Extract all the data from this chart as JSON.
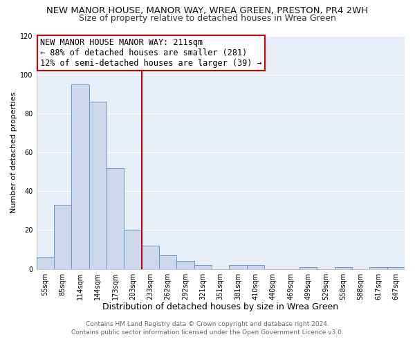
{
  "title": "NEW MANOR HOUSE, MANOR WAY, WREA GREEN, PRESTON, PR4 2WH",
  "subtitle": "Size of property relative to detached houses in Wrea Green",
  "xlabel": "Distribution of detached houses by size in Wrea Green",
  "ylabel": "Number of detached properties",
  "bar_labels": [
    "55sqm",
    "85sqm",
    "114sqm",
    "144sqm",
    "173sqm",
    "203sqm",
    "233sqm",
    "262sqm",
    "292sqm",
    "321sqm",
    "351sqm",
    "381sqm",
    "410sqm",
    "440sqm",
    "469sqm",
    "499sqm",
    "529sqm",
    "558sqm",
    "588sqm",
    "617sqm",
    "647sqm"
  ],
  "bar_values": [
    6,
    33,
    95,
    86,
    52,
    20,
    12,
    7,
    4,
    2,
    0,
    2,
    2,
    0,
    0,
    1,
    0,
    1,
    0,
    1,
    1
  ],
  "bar_color": "#ccd9ed",
  "bar_edge_color": "#6699cc",
  "vline_color": "#aa0000",
  "vline_index": 5.5,
  "ylim": [
    0,
    120
  ],
  "yticks": [
    0,
    20,
    40,
    60,
    80,
    100,
    120
  ],
  "annotation_line1": "NEW MANOR HOUSE MANOR WAY: 211sqm",
  "annotation_line2": "← 88% of detached houses are smaller (281)",
  "annotation_line3": "12% of semi-detached houses are larger (39) →",
  "annotation_box_color": "#ffffff",
  "annotation_box_edge": "#cc0000",
  "footer1": "Contains HM Land Registry data © Crown copyright and database right 2024.",
  "footer2": "Contains public sector information licensed under the Open Government Licence v3.0.",
  "bg_color": "#ffffff",
  "plot_bg_color": "#e8eef8",
  "grid_color": "#ffffff",
  "title_fontsize": 9.5,
  "subtitle_fontsize": 9,
  "xlabel_fontsize": 9,
  "ylabel_fontsize": 8,
  "tick_fontsize": 7,
  "footer_fontsize": 6.5,
  "annotation_fontsize": 8.5
}
